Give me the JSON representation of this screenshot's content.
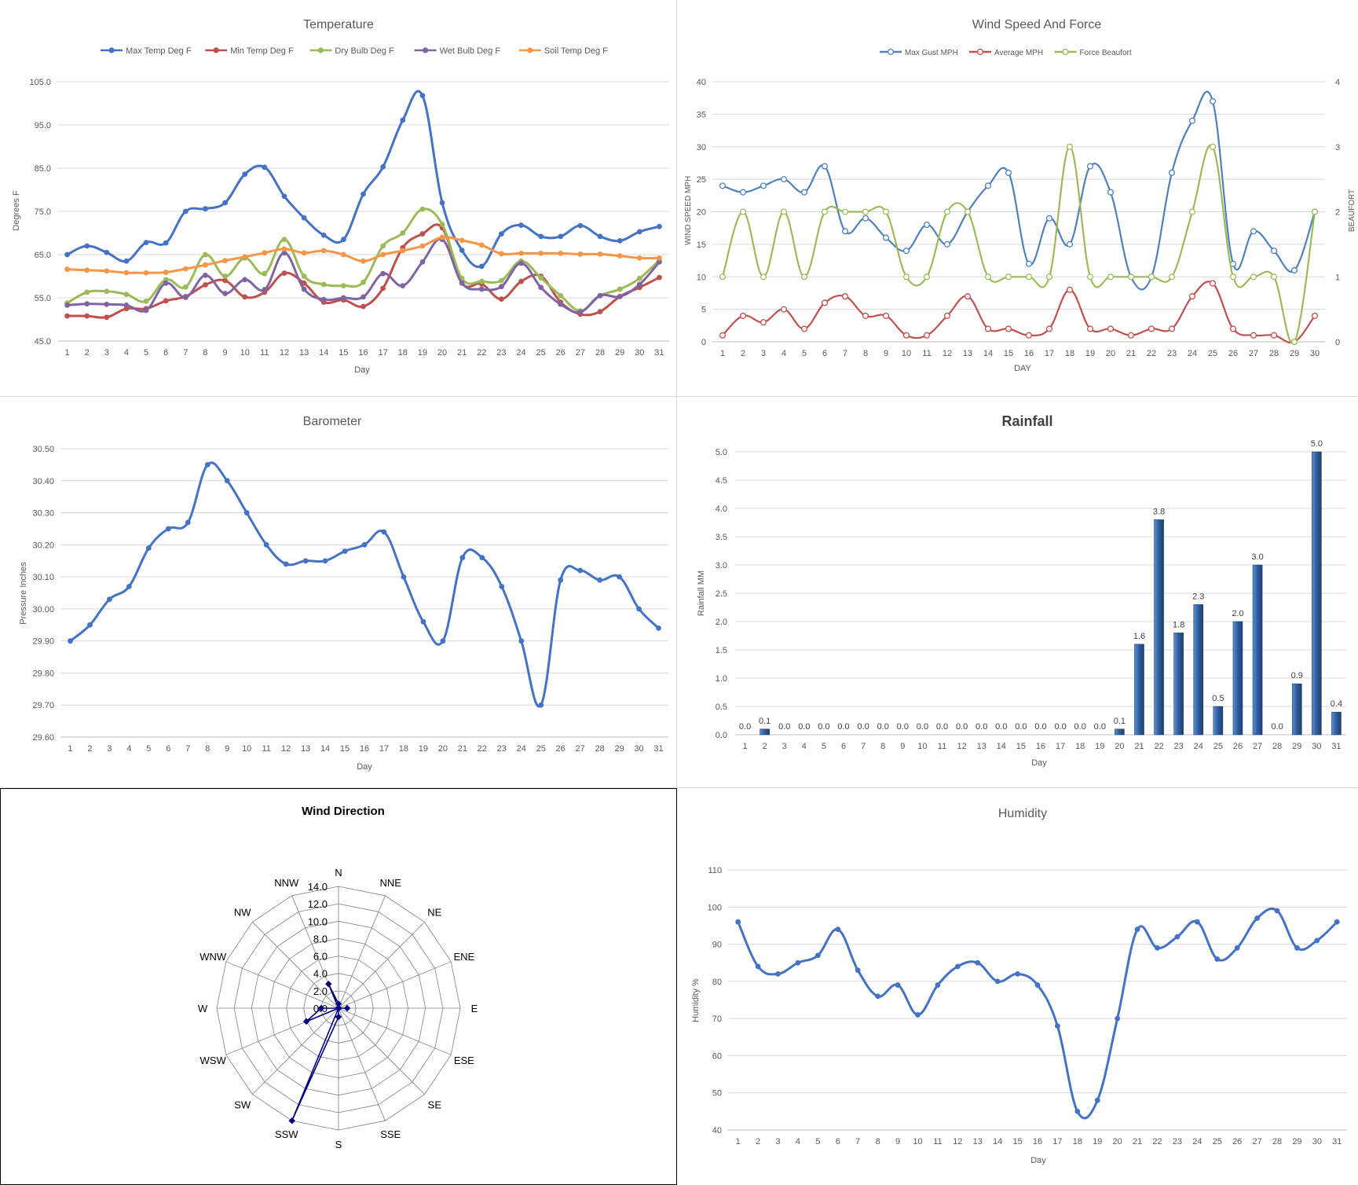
{
  "chart_data": [
    {
      "id": "temp",
      "type": "line",
      "title": "Temperature",
      "xlabel": "Day",
      "ylabel": "Degrees F",
      "categories": [
        "1",
        "2",
        "3",
        "4",
        "5",
        "6",
        "7",
        "8",
        "9",
        "10",
        "11",
        "12",
        "13",
        "14",
        "15",
        "16",
        "17",
        "18",
        "19",
        "20",
        "21",
        "22",
        "23",
        "24",
        "25",
        "26",
        "27",
        "28",
        "29",
        "30",
        "31"
      ],
      "yticks": [
        "45.0",
        "55.0",
        "65.0",
        "75.0",
        "85.0",
        "95.0",
        "105.0"
      ],
      "ylim": [
        45,
        105
      ],
      "grid": true,
      "legend": "top",
      "series": [
        {
          "name": "Max Temp Deg F",
          "color": "#4472c4",
          "values": [
            65.0,
            67.0,
            65.5,
            63.5,
            67.8,
            67.7,
            75.0,
            75.6,
            77.0,
            83.6,
            85.2,
            78.5,
            73.5,
            69.5,
            68.5,
            79.0,
            85.3,
            96.1,
            101.8,
            77.0,
            66.0,
            62.3,
            69.8,
            71.8,
            69.2,
            69.2,
            71.7,
            69.2,
            68.2,
            70.3,
            71.5
          ]
        },
        {
          "name": "Min Temp Deg F",
          "color": "#c0504d",
          "values": [
            50.8,
            50.8,
            50.5,
            52.5,
            52.5,
            54.3,
            55.3,
            58.0,
            59.0,
            55.2,
            56.3,
            60.7,
            58.4,
            54.0,
            54.5,
            53.0,
            57.2,
            66.6,
            69.8,
            71.2,
            58.5,
            58.2,
            54.7,
            58.8,
            60.0,
            54.0,
            51.2,
            51.8,
            55.3,
            57.4,
            59.7
          ]
        },
        {
          "name": "Dry Bulb Deg F",
          "color": "#9bbb59",
          "values": [
            53.8,
            56.3,
            56.5,
            55.8,
            54.2,
            59.2,
            57.5,
            65.0,
            60.0,
            64.2,
            60.6,
            68.5,
            60.0,
            58.1,
            57.8,
            58.6,
            67.0,
            70.0,
            75.5,
            72.0,
            59.5,
            58.8,
            59.0,
            63.5,
            59.6,
            55.5,
            52.0,
            55.5,
            57.0,
            59.5,
            63.7
          ]
        },
        {
          "name": "Wet Bulb Deg F",
          "color": "#8064a2",
          "values": [
            53.3,
            53.6,
            53.5,
            53.3,
            52.1,
            58.4,
            55.1,
            60.2,
            56.0,
            59.2,
            56.9,
            65.4,
            57.0,
            54.6,
            55.0,
            55.2,
            60.6,
            57.8,
            63.3,
            68.5,
            58.4,
            57.0,
            57.6,
            63.0,
            57.4,
            53.5,
            51.7,
            55.5,
            55.3,
            58.1,
            63.3
          ]
        },
        {
          "name": "Soil Temp Deg F",
          "color": "#f79646",
          "values": [
            61.6,
            61.4,
            61.2,
            60.8,
            60.8,
            60.9,
            61.7,
            62.6,
            63.6,
            64.5,
            65.4,
            66.3,
            65.4,
            65.9,
            65.0,
            63.5,
            65.0,
            65.9,
            67.0,
            69.0,
            68.3,
            67.2,
            65.2,
            65.3,
            65.3,
            65.3,
            65.1,
            65.1,
            64.7,
            64.2,
            64.2
          ]
        }
      ]
    },
    {
      "id": "wind",
      "type": "line",
      "title": "Wind Speed And Force",
      "xlabel": "DAY",
      "ylabel": "WIND SPEED MPH",
      "y2label": "BEAUFORT",
      "categories": [
        "1",
        "2",
        "3",
        "4",
        "5",
        "6",
        "7",
        "8",
        "9",
        "10",
        "11",
        "12",
        "13",
        "14",
        "15",
        "16",
        "17",
        "18",
        "19",
        "20",
        "21",
        "22",
        "23",
        "24",
        "25",
        "26",
        "27",
        "28",
        "29",
        "30"
      ],
      "yticks": [
        "0",
        "5",
        "10",
        "15",
        "20",
        "25",
        "30",
        "35",
        "40"
      ],
      "y2ticks": [
        "0",
        "1",
        "2",
        "3",
        "4"
      ],
      "ylim": [
        0,
        40
      ],
      "y2lim": [
        0,
        4
      ],
      "legend": "top",
      "series": [
        {
          "name": "Max Gust MPH",
          "color": "#4f81bd",
          "axis": "left",
          "values": [
            24,
            23,
            24,
            25,
            23,
            27,
            17,
            19,
            16,
            14,
            18,
            15,
            20,
            24,
            26,
            12,
            19,
            15,
            27,
            23,
            10,
            10,
            26,
            34,
            37,
            12,
            17,
            14,
            11,
            20
          ]
        },
        {
          "name": "Average MPH",
          "color": "#c0504d",
          "axis": "left",
          "values": [
            1,
            4,
            3,
            5,
            2,
            6,
            7,
            4,
            4,
            1,
            1,
            4,
            7,
            2,
            2,
            1,
            2,
            8,
            2,
            2,
            1,
            2,
            2,
            7,
            9,
            2,
            1,
            1,
            0,
            4
          ]
        },
        {
          "name": "Force Beaufort",
          "color": "#9bbb59",
          "axis": "right",
          "values": [
            1,
            2,
            1,
            2,
            1,
            2,
            2,
            2,
            2,
            1,
            1,
            2,
            2,
            1,
            1,
            1,
            1,
            3,
            1,
            1,
            1,
            1,
            1,
            2,
            3,
            1,
            1,
            1,
            0,
            2
          ]
        }
      ]
    },
    {
      "id": "baro",
      "type": "line",
      "title": "Barometer",
      "xlabel": "Day",
      "ylabel": "Pressure Inches",
      "categories": [
        "1",
        "2",
        "3",
        "4",
        "5",
        "6",
        "7",
        "8",
        "9",
        "10",
        "11",
        "12",
        "13",
        "14",
        "15",
        "16",
        "17",
        "18",
        "19",
        "20",
        "21",
        "22",
        "23",
        "24",
        "25",
        "26",
        "27",
        "28",
        "29",
        "30",
        "31"
      ],
      "yticks": [
        "29.60",
        "29.70",
        "29.80",
        "29.90",
        "30.00",
        "30.10",
        "30.20",
        "30.30",
        "30.40",
        "30.50"
      ],
      "ylim": [
        29.6,
        30.5
      ],
      "series": [
        {
          "name": "",
          "color": "#4472c4",
          "values": [
            29.9,
            29.95,
            30.03,
            30.07,
            30.19,
            30.25,
            30.27,
            30.45,
            30.4,
            30.3,
            30.2,
            30.14,
            30.15,
            30.15,
            30.18,
            30.2,
            30.24,
            30.1,
            29.96,
            29.9,
            30.16,
            30.16,
            30.07,
            29.9,
            29.7,
            30.09,
            30.12,
            30.09,
            30.1,
            30.0,
            29.94
          ]
        }
      ]
    },
    {
      "id": "rain",
      "type": "bar",
      "title": "Rainfall",
      "xlabel": "Day",
      "ylabel": "Rainfall MM",
      "categories": [
        "1",
        "2",
        "3",
        "4",
        "5",
        "6",
        "7",
        "8",
        "9",
        "10",
        "11",
        "12",
        "13",
        "14",
        "15",
        "16",
        "17",
        "18",
        "19",
        "20",
        "21",
        "22",
        "23",
        "24",
        "25",
        "26",
        "27",
        "28",
        "29",
        "30",
        "31"
      ],
      "values": [
        0.0,
        0.1,
        0.0,
        0.0,
        0.0,
        0.0,
        0.0,
        0.0,
        0.0,
        0.0,
        0.0,
        0.0,
        0.0,
        0.0,
        0.0,
        0.0,
        0.0,
        0.0,
        0.0,
        0.1,
        1.6,
        3.8,
        1.8,
        2.3,
        0.5,
        2.0,
        3.0,
        0.0,
        0.9,
        5.0,
        0.4
      ],
      "labels": [
        "0.0",
        "0.1",
        "0.0",
        "0.0",
        "0.0",
        "0.0",
        "0.0",
        "0.0",
        "0.0",
        "0.0",
        "0.0",
        "0.0",
        "0.0",
        "0.0",
        "0.0",
        "0.0",
        "0.0",
        "0.0",
        "0.0",
        "0.1",
        "1.6",
        "3.8",
        "1.8",
        "2.3",
        "0.5",
        "2.0",
        "3.0",
        "0.0",
        "0.9",
        "5.0",
        "0.4"
      ],
      "yticks": [
        "0.0",
        "0.5",
        "1.0",
        "1.5",
        "2.0",
        "2.5",
        "3.0",
        "3.5",
        "4.0",
        "4.5",
        "5.0"
      ],
      "ylim": [
        0,
        5
      ],
      "color": "#2e5c9a"
    },
    {
      "id": "wdir",
      "type": "radar",
      "title": "Wind Direction",
      "directions": [
        "N",
        "NNE",
        "NE",
        "ENE",
        "E",
        "ESE",
        "SE",
        "SSE",
        "S",
        "SSW",
        "SW",
        "WSW",
        "W",
        "WNW",
        "NW",
        "NNW"
      ],
      "values": [
        0.5,
        0,
        0,
        0,
        1,
        0,
        0,
        0,
        1,
        14,
        0,
        4,
        2,
        0,
        0,
        3
      ],
      "rticks": [
        "0.0",
        "2.0",
        "4.0",
        "6.0",
        "8.0",
        "10.0",
        "12.0",
        "14.0"
      ],
      "rlim": [
        0,
        14
      ],
      "color": "#00007f"
    },
    {
      "id": "humid",
      "type": "line",
      "title": "Humidity",
      "xlabel": "Day",
      "ylabel": "Humidity %",
      "categories": [
        "1",
        "2",
        "3",
        "4",
        "5",
        "6",
        "7",
        "8",
        "9",
        "10",
        "11",
        "12",
        "13",
        "14",
        "15",
        "16",
        "17",
        "18",
        "19",
        "20",
        "21",
        "22",
        "23",
        "24",
        "25",
        "26",
        "27",
        "28",
        "29",
        "30",
        "31"
      ],
      "yticks": [
        "40",
        "50",
        "60",
        "70",
        "80",
        "90",
        "100",
        "110"
      ],
      "ylim": [
        40,
        110
      ],
      "series": [
        {
          "name": "",
          "color": "#4472c4",
          "values": [
            96,
            84,
            82,
            85,
            87,
            94,
            83,
            76,
            79,
            71,
            79,
            84,
            85,
            80,
            82,
            79,
            68,
            45,
            48,
            70,
            94,
            89,
            92,
            96,
            86,
            89,
            97,
            99,
            89,
            91,
            96
          ]
        }
      ]
    }
  ]
}
